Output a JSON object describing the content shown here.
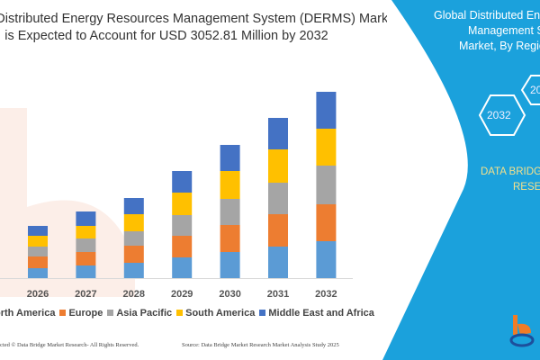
{
  "header": {
    "title_line1": "l Distributed Energy Resources Management System (DERMS) Market",
    "title_line2": "is Expected to Account for USD 3052.81 Million by 2032"
  },
  "chart_data": {
    "type": "bar",
    "stacked": true,
    "categories": [
      "2026",
      "2027",
      "2028",
      "2029",
      "2030",
      "2031",
      "2032"
    ],
    "series": [
      {
        "name": "North America",
        "color": "#5b9bd5",
        "values": [
          11,
          14,
          17,
          23,
          29,
          35,
          41
        ]
      },
      {
        "name": "Europe",
        "color": "#ed7d31",
        "values": [
          13,
          15,
          19,
          24,
          30,
          36,
          41
        ]
      },
      {
        "name": "Asia Pacific",
        "color": "#a5a5a5",
        "values": [
          11,
          15,
          16,
          23,
          29,
          35,
          43
        ]
      },
      {
        "name": "South America",
        "color": "#ffc000",
        "values": [
          12,
          14,
          19,
          25,
          31,
          37,
          41
        ]
      },
      {
        "name": "Middle East and Africa",
        "color": "#4472c4",
        "values": [
          11,
          16,
          18,
          24,
          29,
          35,
          41
        ]
      }
    ],
    "legend_label_first": "orth America",
    "legend_position": "bottom",
    "y_axis_shown": false,
    "grid": false
  },
  "footer": {
    "copyright": "cted © Data Bridge Market Research- All Rights Reserved.",
    "source": "Source: Data Bridge Market Research Market Analysis Study 2025"
  },
  "panel": {
    "color": "#1ba1dc",
    "title_line1": "Global Distributed En",
    "title_line2": "Management S",
    "title_line3": "Market, By Region",
    "hex_year_1": "2032",
    "hex_year_2": "20",
    "brand_line1": "DATA BRIDG",
    "brand_line2": "RESE"
  }
}
